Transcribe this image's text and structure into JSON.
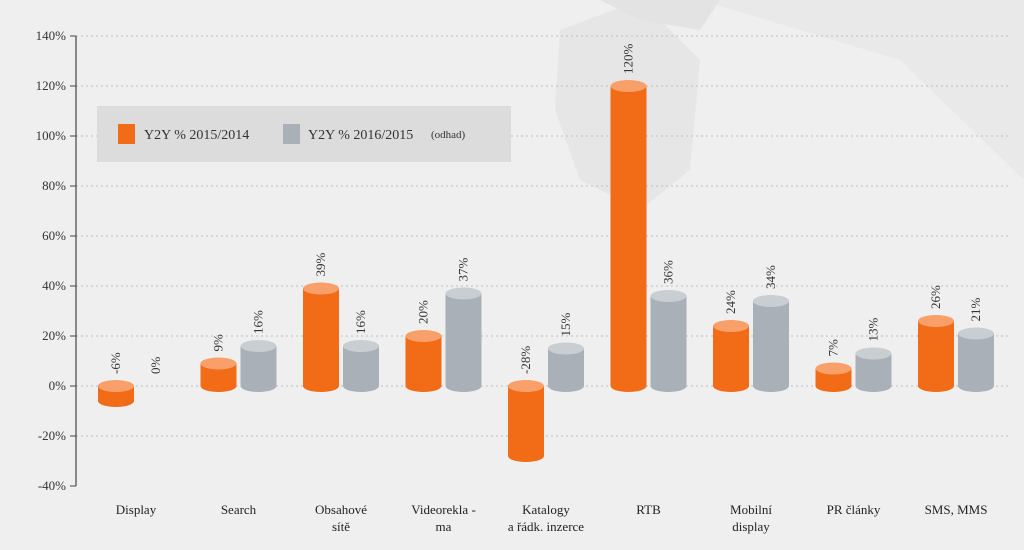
{
  "chart_data": {
    "type": "bar",
    "categories": [
      [
        "Display"
      ],
      [
        "Search"
      ],
      [
        "Obsahové",
        "sítě"
      ],
      [
        "Videorekla  -",
        "ma"
      ],
      [
        "Katalogy",
        "a řádk. inzerce"
      ],
      [
        "RTB"
      ],
      [
        "Mobilní",
        "display"
      ],
      [
        "PR články"
      ],
      [
        "SMS, MMS"
      ]
    ],
    "series": [
      {
        "name": "Y2Y % 2015/2014",
        "values": [
          -6,
          9,
          39,
          20,
          -28,
          120,
          24,
          7,
          26
        ],
        "labels": [
          "-6%",
          "9%",
          "39%",
          "20%",
          "-28%",
          "120%",
          "24%",
          "7%",
          "26%"
        ],
        "color": "#f26b16",
        "top_color": "#f9a06a"
      },
      {
        "name": "Y2Y % 2016/2015",
        "note": "(odhad)",
        "values": [
          0,
          16,
          16,
          37,
          15,
          36,
          34,
          13,
          21
        ],
        "labels": [
          "0%",
          "16%",
          "16%",
          "37%",
          "15%",
          "36%",
          "34%",
          "13%",
          "21%"
        ],
        "color": "#a9b0b8",
        "top_color": "#c9ced3"
      }
    ],
    "ylim": [
      -40,
      140
    ],
    "yticks": [
      -40,
      -20,
      0,
      20,
      40,
      60,
      80,
      100,
      120,
      140
    ],
    "ytick_labels": [
      "-40%",
      "-20%",
      "0%",
      "20%",
      "40%",
      "60%",
      "80%",
      "100%",
      "120%",
      "140%"
    ],
    "grid": true,
    "legend_position": "top-left",
    "title": "",
    "xlabel": "",
    "ylabel": ""
  }
}
